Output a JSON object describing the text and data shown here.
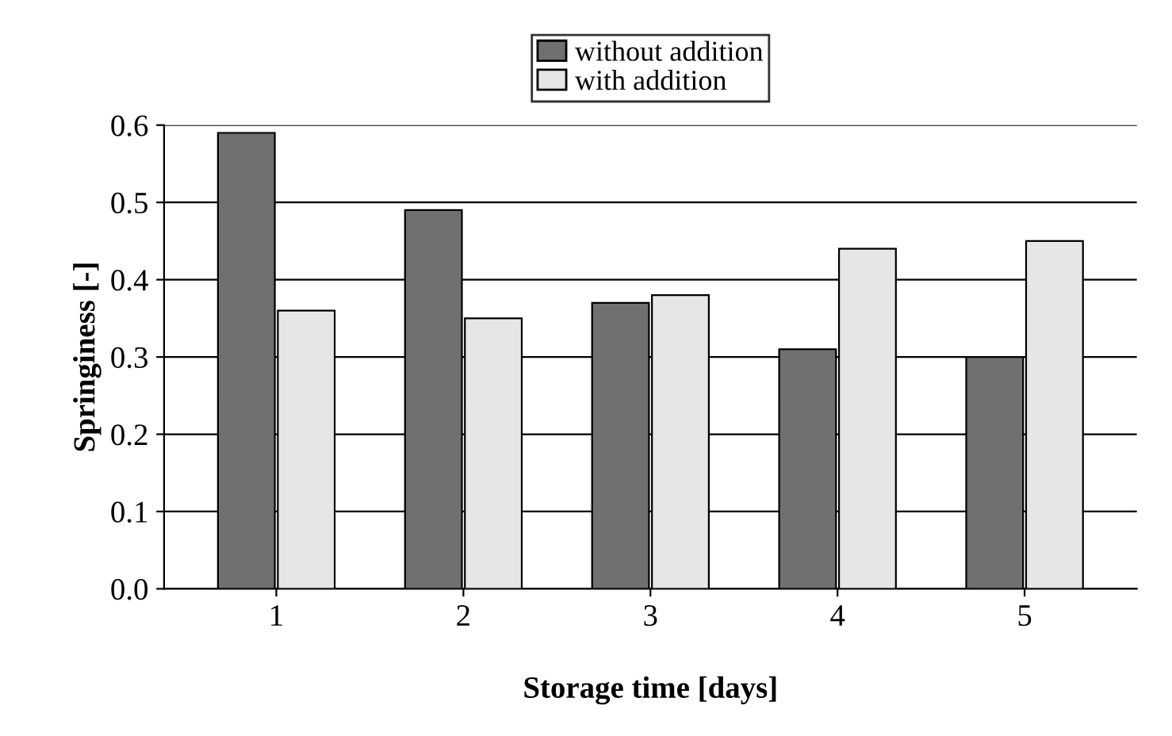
{
  "chart_data": {
    "type": "bar",
    "xlabel": "Storage time [days]",
    "ylabel": "Springiness [-]",
    "categories": [
      "1",
      "2",
      "3",
      "4",
      "5"
    ],
    "series": [
      {
        "name": "without addition",
        "color": "#707070",
        "values": [
          0.59,
          0.49,
          0.37,
          0.31,
          0.3
        ]
      },
      {
        "name": "with addition",
        "color": "#e6e6e6",
        "values": [
          0.36,
          0.35,
          0.38,
          0.44,
          0.45
        ]
      }
    ],
    "ylim": [
      0,
      0.6
    ],
    "yticks": [
      {
        "value": 0,
        "label": "0.0"
      },
      {
        "value": 0.1,
        "label": "0.1"
      },
      {
        "value": 0.2,
        "label": "0.2"
      },
      {
        "value": 0.3,
        "label": "0.3"
      },
      {
        "value": 0.4,
        "label": "0.4"
      },
      {
        "value": 0.5,
        "label": "0.5"
      },
      {
        "value": 0.6,
        "label": "0.6"
      }
    ],
    "grid": "y",
    "legend": "top"
  }
}
